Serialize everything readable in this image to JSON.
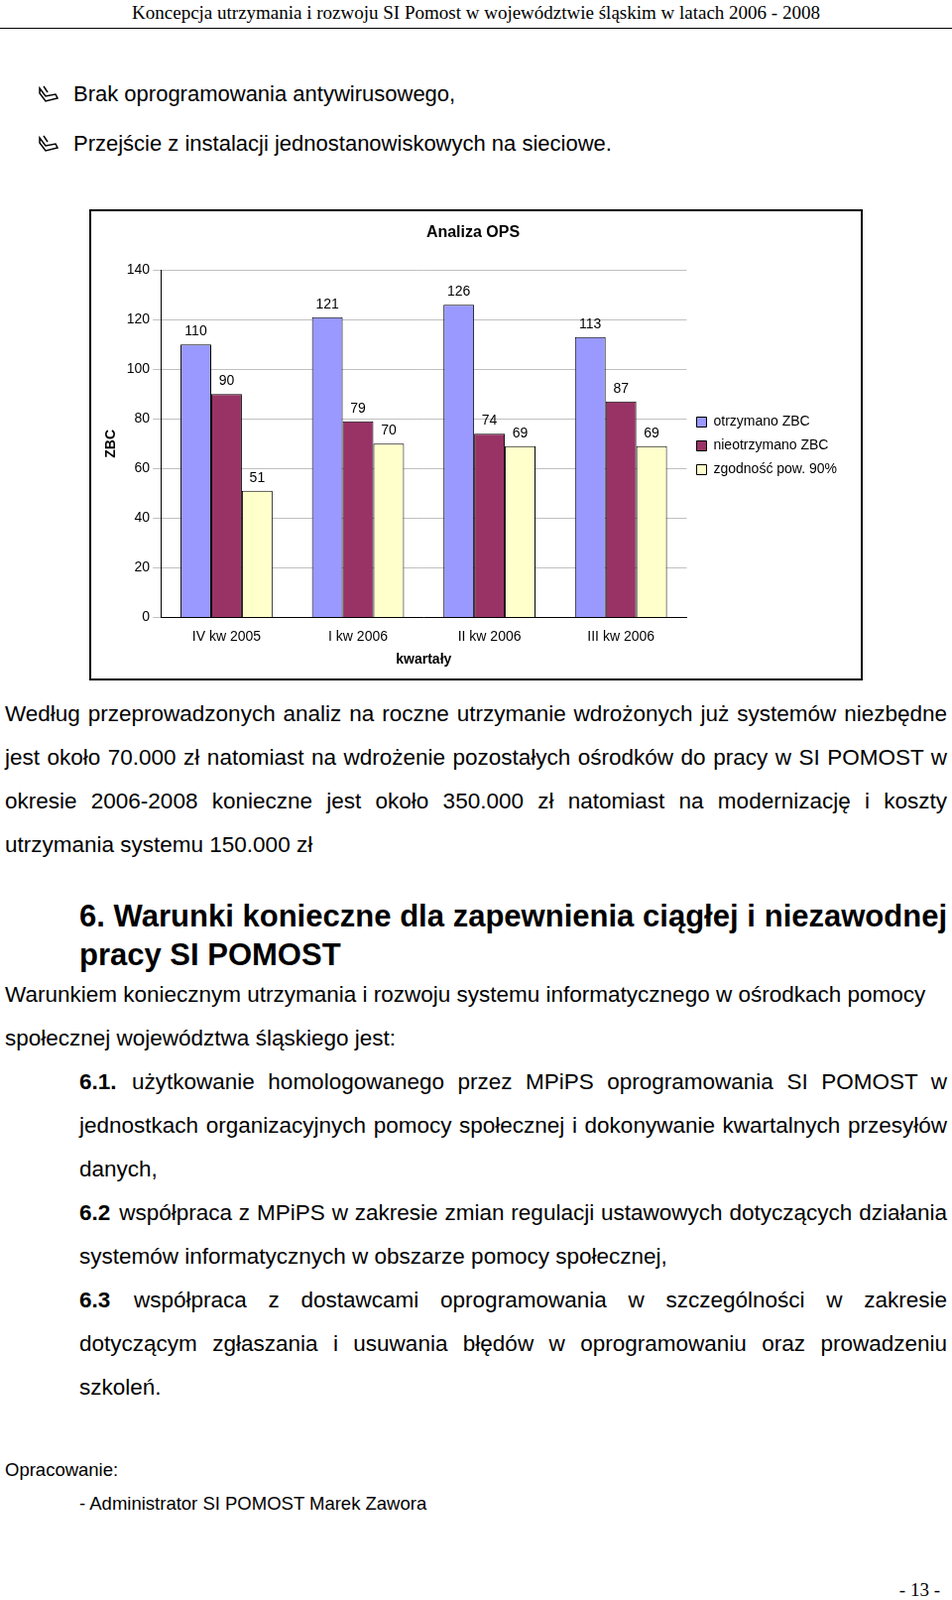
{
  "header": {
    "title": "Koncepcja utrzymania i rozwoju SI Pomost w województwie śląskim w latach 2006 - 2008"
  },
  "bullets": [
    "Brak oprogramowania antywirusowego,",
    "Przejście z instalacji jednostanowiskowych na sieciowe."
  ],
  "chart_data": {
    "type": "bar",
    "title": "Analiza OPS",
    "x_label": "kwartały",
    "y_label": "ZBC",
    "categories": [
      "IV kw 2005",
      "I kw 2006",
      "II kw 2006",
      "III kw 2006"
    ],
    "series": [
      {
        "name": "otrzymano ZBC",
        "color": "#9999ff",
        "values": [
          110,
          121,
          126,
          113
        ]
      },
      {
        "name": "nieotrzymano ZBC",
        "color": "#993366",
        "values": [
          90,
          79,
          74,
          87
        ]
      },
      {
        "name": "zgodność pow. 90%",
        "color": "#ffffcc",
        "values": [
          51,
          70,
          69,
          69
        ]
      }
    ],
    "ylim": [
      0,
      140
    ],
    "yticks": [
      0,
      20,
      40,
      60,
      80,
      100,
      120,
      140
    ],
    "grid": true,
    "legend": "right",
    "data_labels": true
  },
  "paragraphs": [
    "Według przeprowadzonych analiz na roczne utrzymanie wdrożonych już systemów niezbędne jest około 70.000 zł natomiast na wdrożenie pozostałych ośrodków do pracy w SI POMOST w okresie 2006-2008 konieczne jest  około 350.000 zł natomiast na modernizację i koszty utrzymania systemu 150.000 zł"
  ],
  "section": {
    "heading": "6. Warunki konieczne dla zapewnienia ciągłej i niezawodnej pracy SI POMOST",
    "intro": "Warunkiem koniecznym utrzymania i rozwoju systemu informatycznego w ośrodkach pomocy społecznej województwa śląskiego jest:",
    "items": [
      {
        "number": "6.1.",
        "text": "użytkowanie homologowanego przez MPiPS oprogramowania SI POMOST w jednostkach organizacyjnych pomocy  społecznej i dokonywanie kwartalnych przesyłów danych,"
      },
      {
        "number": "6.2",
        "text": "współpraca z MPiPS w zakresie zmian regulacji ustawowych dotyczących działania systemów informatycznych w obszarze pomocy społecznej,"
      },
      {
        "number": "6.3",
        "text": "współpraca z dostawcami oprogramowania w szczególności w zakresie dotyczącym zgłaszania i  usuwania  błędów w oprogramowaniu oraz prowadzeniu szkoleń."
      }
    ]
  },
  "footer": {
    "prepared_label": "Opracowanie:",
    "author": "- Administrator SI POMOST Marek Zawora",
    "page": "- 13 -"
  }
}
